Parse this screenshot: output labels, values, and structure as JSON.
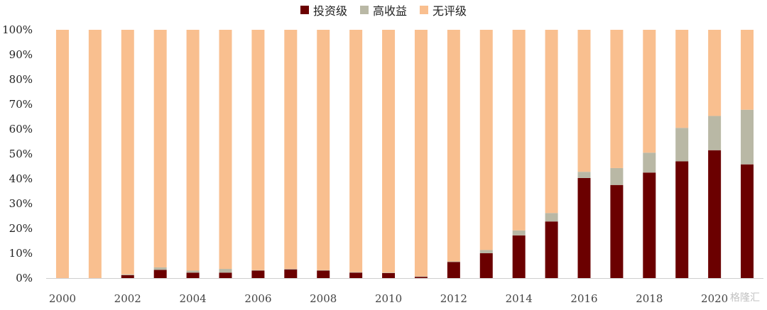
{
  "chart_data": {
    "type": "bar",
    "stacked": true,
    "percent": true,
    "categories": [
      "2000",
      "2001",
      "2002",
      "2003",
      "2004",
      "2005",
      "2006",
      "2007",
      "2008",
      "2009",
      "2010",
      "2011",
      "2012",
      "2013",
      "2014",
      "2015",
      "2016",
      "2017",
      "2018",
      "2019",
      "2020",
      "2021"
    ],
    "x_tick_labels": [
      "2000",
      "",
      "2002",
      "",
      "2004",
      "",
      "2006",
      "",
      "2008",
      "",
      "2010",
      "",
      "2012",
      "",
      "2014",
      "",
      "2016",
      "",
      "2018",
      "",
      "2020",
      ""
    ],
    "y_tick_labels": [
      "0%",
      "10%",
      "20%",
      "30%",
      "40%",
      "50%",
      "60%",
      "70%",
      "80%",
      "90%",
      "100%"
    ],
    "ylim": [
      0,
      100
    ],
    "legend_position": "top-center",
    "series": [
      {
        "name": "投资级",
        "color": "#6b0000",
        "values": [
          0,
          0,
          1.2,
          3.3,
          2.2,
          2.2,
          3.0,
          3.5,
          3.0,
          2.2,
          2.0,
          0.5,
          6.5,
          10.0,
          17.2,
          22.8,
          40.3,
          37.5,
          42.5,
          47.0,
          51.5,
          45.8
        ]
      },
      {
        "name": "高收益",
        "color": "#b9b8a5",
        "values": [
          0,
          0,
          0.3,
          1.0,
          0.8,
          1.5,
          0.2,
          0.2,
          0.2,
          0.2,
          0.2,
          0.2,
          0.2,
          1.3,
          2.0,
          3.4,
          2.5,
          6.8,
          8.0,
          13.5,
          13.8,
          22.0
        ]
      },
      {
        "name": "无评级",
        "color": "#f9bf8f",
        "values": [
          100,
          100,
          98.5,
          95.7,
          97.0,
          96.3,
          96.8,
          96.3,
          96.8,
          97.6,
          97.8,
          99.3,
          93.3,
          88.7,
          80.8,
          73.8,
          57.2,
          55.7,
          49.5,
          39.5,
          34.7,
          32.2
        ]
      }
    ]
  },
  "watermark": "格隆汇"
}
